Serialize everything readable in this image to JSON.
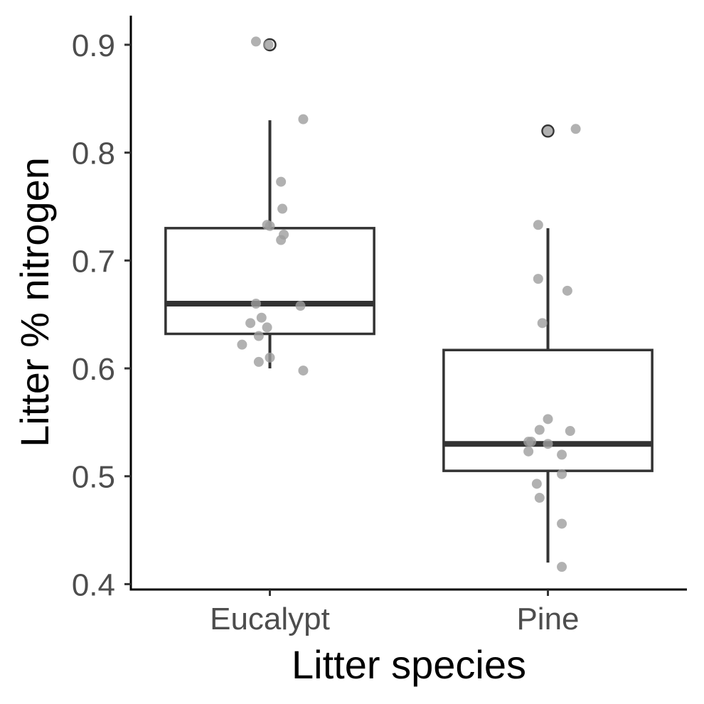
{
  "chart_data": {
    "type": "box",
    "xlabel": "Litter species",
    "ylabel": "Litter % nitrogen",
    "ylim": [
      0.395,
      0.927
    ],
    "yticks": [
      0.4,
      0.5,
      0.6,
      0.7,
      0.8,
      0.9
    ],
    "ytick_labels": [
      "0.4",
      "0.5",
      "0.6",
      "0.7",
      "0.8",
      "0.9"
    ],
    "categories": [
      "Eucalypt",
      "Pine"
    ],
    "boxes": [
      {
        "category": "Eucalypt",
        "whisker_low": 0.6,
        "q1": 0.632,
        "median": 0.66,
        "q3": 0.73,
        "whisker_high": 0.83
      },
      {
        "category": "Pine",
        "whisker_low": 0.42,
        "q1": 0.505,
        "median": 0.53,
        "q3": 0.617,
        "whisker_high": 0.73
      }
    ],
    "outliers": [
      {
        "category": "Eucalypt",
        "values": [
          0.9
        ]
      },
      {
        "category": "Pine",
        "values": [
          0.82
        ]
      }
    ],
    "points": [
      {
        "category": "Eucalypt",
        "values": [
          0.903,
          0.9,
          0.831,
          0.773,
          0.748,
          0.733,
          0.732,
          0.724,
          0.719,
          0.66,
          0.658,
          0.647,
          0.642,
          0.638,
          0.63,
          0.622,
          0.61,
          0.606,
          0.598
        ],
        "jitter": [
          -0.05,
          -0.005,
          0.12,
          0.04,
          0.045,
          -0.01,
          0.0,
          0.05,
          0.04,
          -0.05,
          0.11,
          -0.03,
          -0.07,
          -0.01,
          -0.04,
          -0.1,
          0.0,
          -0.04,
          0.12
        ]
      },
      {
        "category": "Pine",
        "values": [
          0.82,
          0.822,
          0.733,
          0.683,
          0.672,
          0.642,
          0.553,
          0.543,
          0.542,
          0.532,
          0.532,
          0.53,
          0.523,
          0.52,
          0.502,
          0.493,
          0.48,
          0.456,
          0.416
        ],
        "jitter": [
          0.0,
          0.1,
          -0.035,
          -0.035,
          0.07,
          -0.02,
          0.0,
          -0.03,
          0.08,
          -0.07,
          -0.06,
          0.0,
          -0.07,
          0.05,
          0.05,
          -0.04,
          -0.03,
          0.05,
          0.05
        ]
      }
    ],
    "colors": {
      "box": "#333333",
      "points": "#9e9e9e",
      "axis": "#000000"
    },
    "grid": false,
    "legend": "none"
  }
}
